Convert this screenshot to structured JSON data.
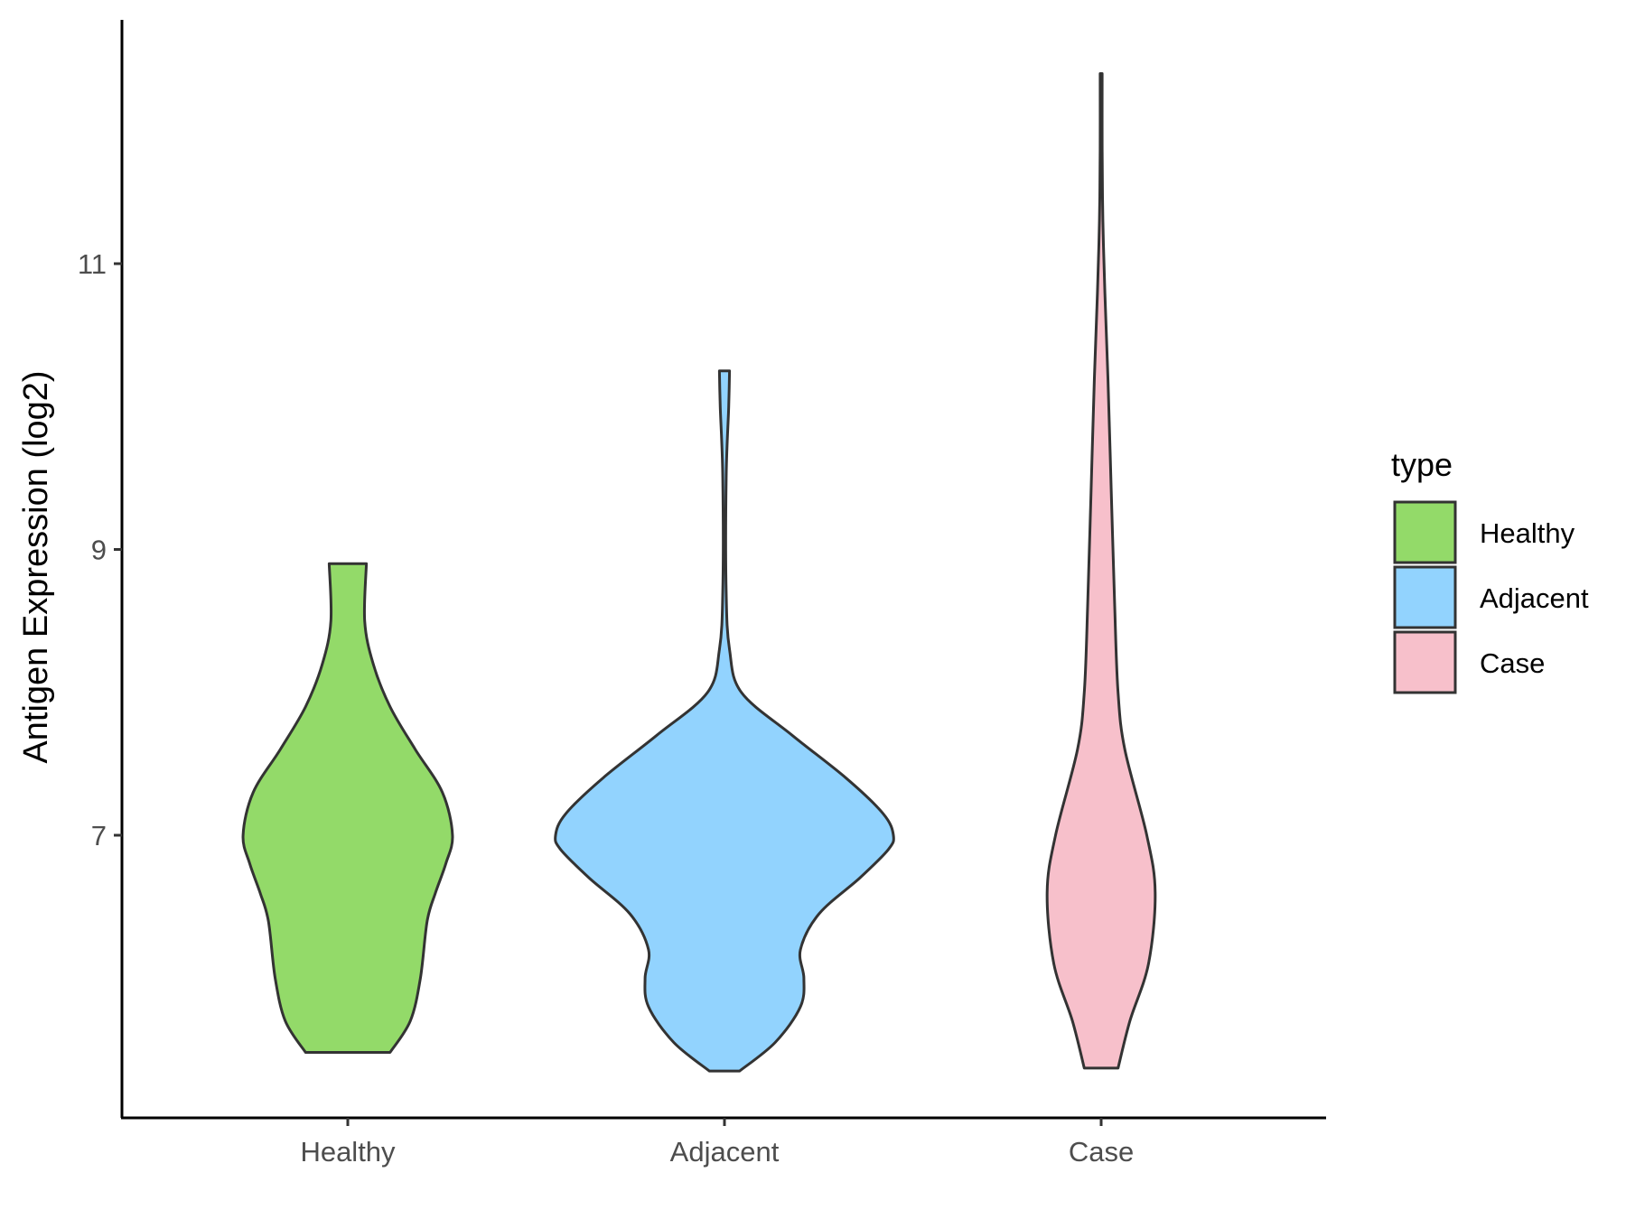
{
  "chart_data": {
    "type": "violin",
    "title": "",
    "xlabel": "",
    "ylabel": "Antigen Expression (log2)",
    "ylim": [
      4.9,
      12.6
    ],
    "yticks": [
      7,
      9,
      11
    ],
    "categories": [
      "Healthy",
      "Adjacent",
      "Case"
    ],
    "grid": false,
    "legend": {
      "title": "type",
      "position": "right",
      "entries": [
        "Healthy",
        "Adjacent",
        "Case"
      ]
    },
    "series": [
      {
        "name": "Healthy",
        "color": "#93DA69",
        "min": 5.48,
        "max": 8.9,
        "density": [
          [
            5.48,
            0.25
          ],
          [
            5.7,
            0.37
          ],
          [
            6.0,
            0.43
          ],
          [
            6.4,
            0.47
          ],
          [
            6.6,
            0.52
          ],
          [
            6.8,
            0.58
          ],
          [
            7.0,
            0.62
          ],
          [
            7.3,
            0.56
          ],
          [
            7.6,
            0.4
          ],
          [
            7.9,
            0.25
          ],
          [
            8.2,
            0.15
          ],
          [
            8.5,
            0.1
          ],
          [
            8.9,
            0.11
          ]
        ]
      },
      {
        "name": "Adjacent",
        "color": "#92D3FE",
        "min": 5.35,
        "max": 10.25,
        "density": [
          [
            5.35,
            0.09
          ],
          [
            5.55,
            0.3
          ],
          [
            5.8,
            0.45
          ],
          [
            6.0,
            0.47
          ],
          [
            6.2,
            0.45
          ],
          [
            6.45,
            0.56
          ],
          [
            6.7,
            0.8
          ],
          [
            6.9,
            0.97
          ],
          [
            7.0,
            1.0
          ],
          [
            7.15,
            0.94
          ],
          [
            7.4,
            0.72
          ],
          [
            7.7,
            0.4
          ],
          [
            8.0,
            0.1
          ],
          [
            8.3,
            0.03
          ],
          [
            8.7,
            0.01
          ],
          [
            9.5,
            0.01
          ],
          [
            10.0,
            0.025
          ],
          [
            10.25,
            0.03
          ]
        ]
      },
      {
        "name": "Case",
        "color": "#F7C0CB",
        "min": 5.37,
        "max": 12.33,
        "density": [
          [
            5.37,
            0.1
          ],
          [
            5.7,
            0.17
          ],
          [
            6.1,
            0.28
          ],
          [
            6.6,
            0.32
          ],
          [
            7.0,
            0.27
          ],
          [
            7.6,
            0.14
          ],
          [
            8.0,
            0.1
          ],
          [
            8.6,
            0.08
          ],
          [
            9.4,
            0.06
          ],
          [
            10.2,
            0.04
          ],
          [
            10.8,
            0.022
          ],
          [
            11.3,
            0.01
          ],
          [
            11.8,
            0.006
          ],
          [
            12.33,
            0.006
          ]
        ]
      }
    ]
  }
}
